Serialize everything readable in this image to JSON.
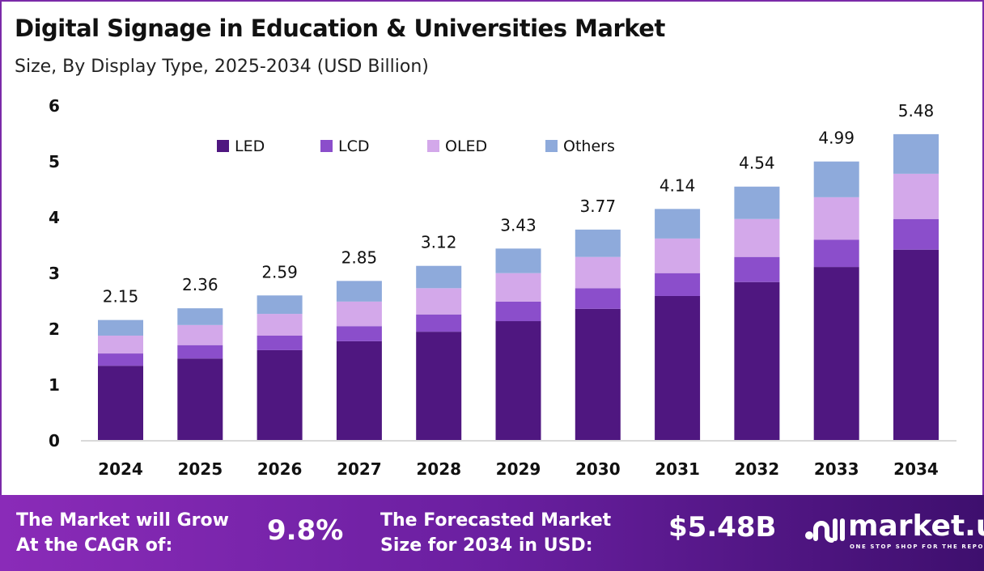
{
  "header": {
    "title": "Digital Signage in Education & Universities Market",
    "subtitle": "Size, By Display Type, 2025-2034 (USD Billion)"
  },
  "chart_data": {
    "type": "bar",
    "stacked": true,
    "categories": [
      "2024",
      "2025",
      "2026",
      "2027",
      "2028",
      "2029",
      "2030",
      "2031",
      "2032",
      "2033",
      "2034"
    ],
    "series": [
      {
        "name": "LED",
        "color": "#4f1780",
        "values": [
          1.33,
          1.46,
          1.61,
          1.77,
          1.94,
          2.13,
          2.35,
          2.58,
          2.83,
          3.1,
          3.41
        ]
      },
      {
        "name": "LCD",
        "color": "#8b4ecb",
        "values": [
          0.22,
          0.24,
          0.26,
          0.27,
          0.31,
          0.35,
          0.37,
          0.41,
          0.45,
          0.49,
          0.55
        ]
      },
      {
        "name": "OLED",
        "color": "#d3a8ea",
        "values": [
          0.32,
          0.36,
          0.39,
          0.44,
          0.47,
          0.51,
          0.56,
          0.62,
          0.68,
          0.76,
          0.81
        ]
      },
      {
        "name": "Others",
        "color": "#8eaadb",
        "values": [
          0.28,
          0.3,
          0.33,
          0.37,
          0.4,
          0.44,
          0.49,
          0.53,
          0.58,
          0.64,
          0.71
        ]
      }
    ],
    "totals": [
      "2.15",
      "2.36",
      "2.59",
      "2.85",
      "3.12",
      "3.43",
      "3.77",
      "4.14",
      "4.54",
      "4.99",
      "5.48"
    ],
    "yticks": [
      "0",
      "1",
      "2",
      "3",
      "4",
      "5",
      "6"
    ],
    "ylim": [
      0,
      6
    ],
    "grid": false,
    "legend": "top"
  },
  "footer": {
    "cagr_label_1": "The Market will Grow",
    "cagr_label_2": "At the CAGR of:",
    "cagr_value": "9.8%",
    "forecast_label_1": "The Forecasted Market",
    "forecast_label_2": "Size for 2034 in USD:",
    "forecast_value": "$5.48B",
    "logo_name": "market.us",
    "logo_tagline": "ONE STOP SHOP FOR THE REPORTS"
  }
}
